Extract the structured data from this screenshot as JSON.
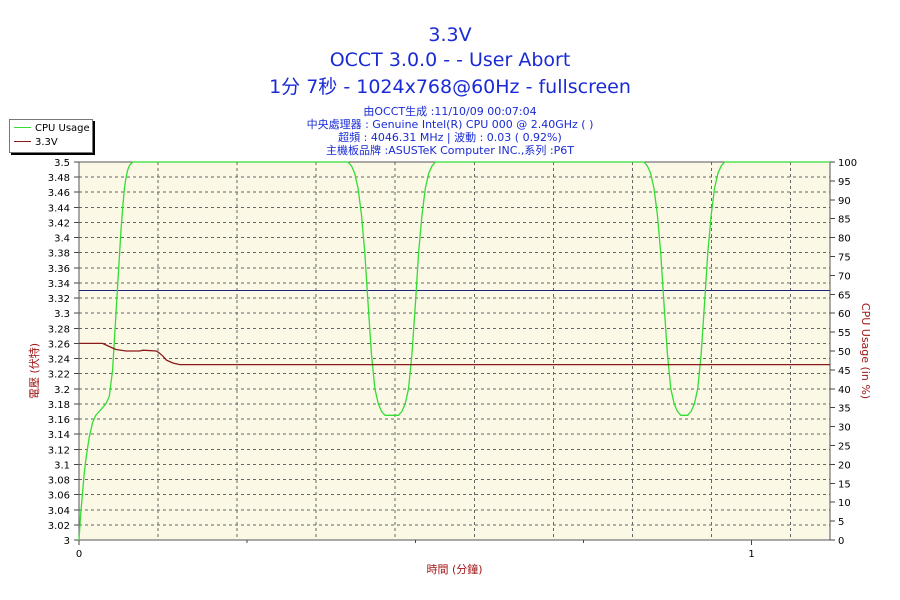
{
  "titles": {
    "line1": "3.3V",
    "line2": "OCCT 3.0.0 -  - User Abort",
    "line3": "1分 7秒 - 1024x768@60Hz - fullscreen"
  },
  "info": {
    "line1": "由OCCT生成 :11/10/09 00:07:04",
    "line2": "中央處理器 : Genuine Intel(R) CPU 000 @ 2.40GHz (  )",
    "line3": "超頻 : 4046.31 MHz | 波動 : 0.03 ( 0.92%)",
    "line4": "主機板品牌 :ASUSTeK Computer INC.,系列 :P6T"
  },
  "colors": {
    "cpu": "#33dd33",
    "voltage": "#8b1a1a",
    "reference": "#1a237e",
    "plot_bg": "#fbf8e6",
    "axis_text": "#a01818"
  },
  "chart_data": {
    "type": "line",
    "xlabel": "時間 (分鐘)",
    "ylabel": "電壓 (伏特)",
    "y2label": "CPU Usage (in %)",
    "xlim": [
      0,
      1.1167
    ],
    "ylim": [
      3.0,
      3.5
    ],
    "y2lim": [
      0,
      100
    ],
    "x_ticks": [
      0,
      1
    ],
    "y_ticks": [
      3,
      3.02,
      3.04,
      3.06,
      3.08,
      3.1,
      3.12,
      3.14,
      3.16,
      3.18,
      3.2,
      3.22,
      3.24,
      3.26,
      3.28,
      3.3,
      3.32,
      3.34,
      3.36,
      3.38,
      3.4,
      3.42,
      3.44,
      3.46,
      3.48,
      3.5
    ],
    "y2_ticks": [
      0,
      5,
      10,
      15,
      20,
      25,
      30,
      35,
      40,
      45,
      50,
      55,
      60,
      65,
      70,
      75,
      80,
      85,
      90,
      95,
      100
    ],
    "reference_line": 3.33,
    "grid": true,
    "legend_position": "top-left",
    "series": [
      {
        "name": "CPU Usage",
        "axis": "right",
        "x": [
          0,
          0.0025,
          0.005,
          0.0075,
          0.01,
          0.015,
          0.02,
          0.025,
          0.03,
          0.035,
          0.04,
          0.045,
          0.05,
          0.055,
          0.06,
          0.0625,
          0.065,
          0.0675,
          0.07,
          0.0725,
          0.075,
          0.0775,
          0.08,
          0.0825,
          0.085,
          0.087,
          0.09,
          0.1,
          0.2,
          0.3,
          0.38,
          0.4,
          0.405,
          0.41,
          0.415,
          0.42,
          0.425,
          0.43,
          0.435,
          0.44,
          0.445,
          0.45,
          0.455,
          0.46,
          0.465,
          0.47,
          0.475,
          0.48,
          0.485,
          0.49,
          0.495,
          0.5,
          0.505,
          0.51,
          0.515,
          0.52,
          0.525,
          0.53,
          0.535,
          0.54,
          0.545,
          0.55,
          0.555,
          0.56,
          0.6,
          0.7,
          0.8,
          0.84,
          0.845,
          0.85,
          0.855,
          0.86,
          0.865,
          0.87,
          0.875,
          0.88,
          0.885,
          0.89,
          0.895,
          0.9,
          0.905,
          0.91,
          0.915,
          0.92,
          0.925,
          0.93,
          0.935,
          0.94,
          0.945,
          0.95,
          0.955,
          0.96,
          0.965,
          0.97,
          1.0,
          1.1167
        ],
        "values": [
          0,
          7,
          12,
          17,
          21,
          27,
          31,
          33,
          34,
          35,
          36,
          38,
          45,
          60,
          75,
          82,
          88,
          93,
          96,
          98,
          99,
          99.6,
          100,
          100,
          100,
          100,
          100,
          100,
          100,
          100,
          100,
          100,
          99,
          97,
          93,
          86,
          76,
          62,
          49,
          40,
          36,
          34,
          33,
          33,
          33,
          33,
          33,
          34,
          36,
          40,
          49,
          62,
          76,
          86,
          93,
          97,
          99,
          100,
          100,
          100,
          100,
          100,
          100,
          100,
          100,
          100,
          100,
          100,
          99,
          97,
          93,
          86,
          76,
          62,
          49,
          40,
          36,
          34,
          33,
          33,
          33,
          34,
          36,
          40,
          49,
          62,
          76,
          86,
          93,
          97,
          99,
          100,
          100,
          100,
          100,
          100
        ]
      },
      {
        "name": "3.3V",
        "axis": "left",
        "x": [
          0,
          0.035,
          0.045,
          0.055,
          0.07,
          0.09,
          0.095,
          0.115,
          0.12,
          0.125,
          0.13,
          0.14,
          0.15,
          1.1167
        ],
        "values": [
          3.26,
          3.26,
          3.256,
          3.252,
          3.25,
          3.25,
          3.251,
          3.25,
          3.247,
          3.243,
          3.238,
          3.234,
          3.232,
          3.232
        ]
      }
    ]
  }
}
